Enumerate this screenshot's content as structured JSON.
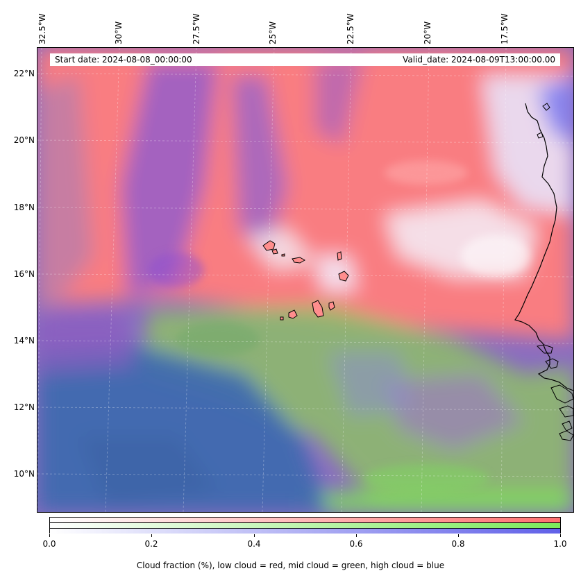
{
  "map": {
    "lon_labels": [
      "32.5°W",
      "30°W",
      "27.5°W",
      "25°W",
      "22.5°W",
      "20°W",
      "17.5°W"
    ],
    "lat_labels": [
      "22°N",
      "20°N",
      "18°N",
      "16°N",
      "14°N",
      "12°N",
      "10°N"
    ],
    "lon_range": [
      -33.0,
      -16.0
    ],
    "lat_range": [
      8.9,
      22.8
    ],
    "projection_note": "",
    "start_date": "Start date: 2024-08-08_00:00:00",
    "valid_date": "Valid_date: 2024-08-09T13:00:00.00",
    "colors": {
      "low_cloud": "#ff7070",
      "mid_cloud": "#7aeb5a",
      "high_cloud": "#6060e8",
      "clear_ocean": "#3e6bb0"
    }
  },
  "colorbar": {
    "ticks": [
      "0.0",
      "0.2",
      "0.4",
      "0.6",
      "0.8",
      "1.0"
    ],
    "caption": "Cloud fraction (%), low cloud = red, mid cloud = green, high cloud = blue"
  }
}
